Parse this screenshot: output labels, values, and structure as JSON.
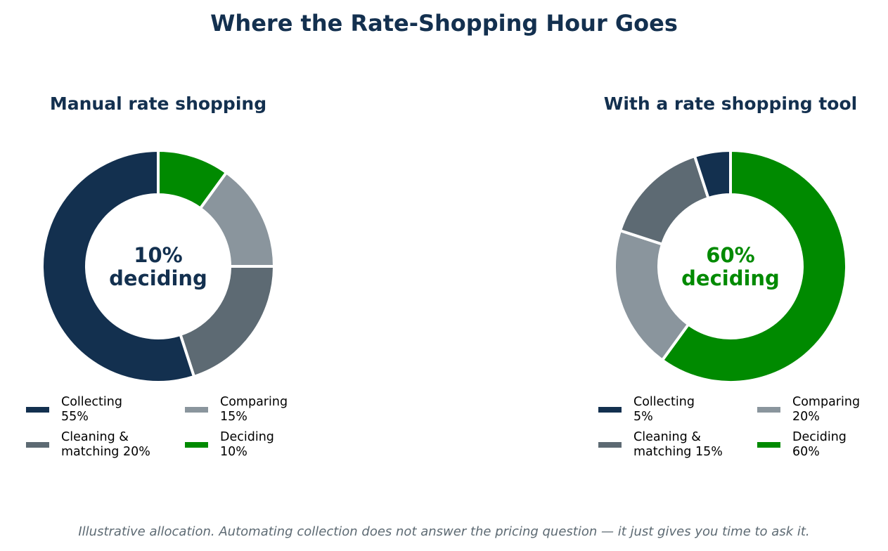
{
  "title": "Where the Rate-Shopping Hour Goes",
  "footnote": "Illustrative allocation. Automating collection does not answer the pricing question — it just gives you time to ask it.",
  "colors": {
    "collecting": "#13304f",
    "comparing": "#8a959d",
    "cleaning": "#5d6a73",
    "deciding": "#008a00"
  },
  "chart_data": [
    {
      "type": "pie",
      "style": "donut",
      "title": "Manual rate shopping",
      "center_label": [
        "10%",
        "deciding"
      ],
      "center_color": "#13304f",
      "direction": "clockwise",
      "start": "top",
      "slices": [
        {
          "label": "Deciding",
          "value": 10,
          "color": "#008a00"
        },
        {
          "label": "Comparing",
          "value": 15,
          "color": "#8a959d"
        },
        {
          "label": "Cleaning & matching",
          "value": 20,
          "color": "#5d6a73"
        },
        {
          "label": "Collecting",
          "value": 55,
          "color": "#13304f"
        }
      ],
      "legend": [
        {
          "lines": [
            "Collecting",
            "55%"
          ],
          "color": "#13304f"
        },
        {
          "lines": [
            "Comparing",
            "15%"
          ],
          "color": "#8a959d"
        },
        {
          "lines": [
            "Cleaning &",
            "matching 20%"
          ],
          "color": "#5d6a73"
        },
        {
          "lines": [
            "Deciding",
            "10%"
          ],
          "color": "#008a00"
        }
      ],
      "legend_placement": "bottom"
    },
    {
      "type": "pie",
      "style": "donut",
      "title": "With a rate shopping tool",
      "center_label": [
        "60%",
        "deciding"
      ],
      "center_color": "#008a00",
      "direction": "clockwise",
      "start": "top",
      "slices": [
        {
          "label": "Deciding",
          "value": 60,
          "color": "#008a00"
        },
        {
          "label": "Comparing",
          "value": 20,
          "color": "#8a959d"
        },
        {
          "label": "Cleaning & matching",
          "value": 15,
          "color": "#5d6a73"
        },
        {
          "label": "Collecting",
          "value": 5,
          "color": "#13304f"
        }
      ],
      "legend": [
        {
          "lines": [
            "Collecting",
            "5%"
          ],
          "color": "#13304f"
        },
        {
          "lines": [
            "Comparing",
            "20%"
          ],
          "color": "#8a959d"
        },
        {
          "lines": [
            "Cleaning &",
            "matching 15%"
          ],
          "color": "#5d6a73"
        },
        {
          "lines": [
            "Deciding",
            "60%"
          ],
          "color": "#008a00"
        }
      ],
      "legend_placement": "bottom"
    }
  ]
}
